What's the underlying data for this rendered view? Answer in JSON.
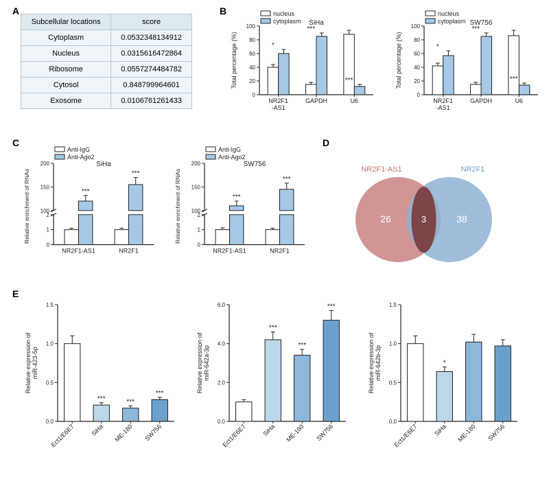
{
  "labels": {
    "A": "A",
    "B": "B",
    "C": "C",
    "D": "D",
    "E": "E"
  },
  "panelA": {
    "columns": [
      "Subcellular locations",
      "score"
    ],
    "rows": [
      [
        "Cytoplasm",
        "0.0532348134912"
      ],
      [
        "Nucleus",
        "0.0315616472864"
      ],
      [
        "Ribosome",
        "0.0557274484782"
      ],
      [
        "Cytosol",
        "0.848799964601"
      ],
      [
        "Exosome",
        "0.0106761261433"
      ]
    ],
    "header_bg": "#dfe9f0",
    "cell_bg": "#eef4f8",
    "border": "#b8c9d4",
    "fontsize": 11
  },
  "panelB": {
    "legend": [
      "nucleus",
      "cytoplasm"
    ],
    "legend_colors": [
      "#ffffff",
      "#a5c9e6"
    ],
    "charts": [
      {
        "title": "SiHa",
        "ylabel": "Total percentage (%)",
        "ylim": [
          0,
          100
        ],
        "ytick_step": 20,
        "categories": [
          "NR2F1\n-AS1",
          "GAPDH",
          "U6"
        ],
        "series": [
          {
            "name": "nucleus",
            "values": [
              40,
              15,
              88
            ],
            "err": [
              4,
              3,
              6
            ],
            "color": "#ffffff"
          },
          {
            "name": "cytoplasm",
            "values": [
              60,
              85,
              12
            ],
            "err": [
              6,
              5,
              3
            ],
            "color": "#a5c9e6"
          }
        ],
        "sig": [
          "*",
          "***",
          "***"
        ]
      },
      {
        "title": "SW756",
        "ylabel": "Total percentage (%)",
        "ylim": [
          0,
          100
        ],
        "ytick_step": 20,
        "categories": [
          "NR2F1\n-AS1",
          "GAPDH",
          "U6"
        ],
        "series": [
          {
            "name": "nucleus",
            "values": [
              42,
              15,
              86
            ],
            "err": [
              4,
              3,
              8
            ],
            "color": "#ffffff"
          },
          {
            "name": "cytoplasm",
            "values": [
              57,
              85,
              14
            ],
            "err": [
              7,
              5,
              3
            ],
            "color": "#a5c9e6"
          }
        ],
        "sig": [
          "*",
          "***",
          "***"
        ]
      }
    ]
  },
  "panelC": {
    "legend": [
      "Anti-IgG",
      "Anti-Ago2"
    ],
    "legend_colors": [
      "#ffffff",
      "#a5c9e6"
    ],
    "charts": [
      {
        "title": "SiHa",
        "ylabel": "Relative enrichment of RNAs",
        "break_low": [
          0,
          2
        ],
        "break_high": [
          100,
          200
        ],
        "categories": [
          "NR2F1-AS1",
          "NR2F1"
        ],
        "series": [
          {
            "name": "Anti-IgG",
            "values": [
              1,
              1
            ],
            "err": [
              0.1,
              0.1
            ],
            "color": "#ffffff"
          },
          {
            "name": "Anti-Ago2",
            "values": [
              120,
              155
            ],
            "err": [
              12,
              15
            ],
            "color": "#a5c9e6"
          }
        ],
        "sig": [
          "***",
          "***"
        ]
      },
      {
        "title": "SW756",
        "ylabel": "Relative enrichment of RNAs",
        "break_low": [
          0,
          2
        ],
        "break_high": [
          100,
          200
        ],
        "categories": [
          "NR2F1-AS1",
          "NR2F1"
        ],
        "series": [
          {
            "name": "Anti-IgG",
            "values": [
              1,
              1
            ],
            "err": [
              0.12,
              0.1
            ],
            "color": "#ffffff"
          },
          {
            "name": "Anti-Ago2",
            "values": [
              110,
              145
            ],
            "err": [
              10,
              13
            ],
            "color": "#a5c9e6"
          }
        ],
        "sig": [
          "***",
          "***"
        ]
      }
    ]
  },
  "panelD": {
    "left_label": "NR2F1-AS1",
    "right_label": "NR2F1",
    "left_count": "26",
    "overlap": "3",
    "right_count": "38",
    "left_color": "#c98282",
    "right_color": "#8fb3d4",
    "overlap_color": "#7a3a3a",
    "left_label_color": "#c77272",
    "right_label_color": "#6fa0cc"
  },
  "panelE": {
    "charts": [
      {
        "ylabel": "Relative expression of\nmiR-423-5p",
        "ylim": [
          0,
          1.5
        ],
        "ytick_step": 0.5,
        "categories": [
          "Ect1/E6E7",
          "SiHa",
          "ME-180",
          "SW756"
        ],
        "values": [
          1.0,
          0.21,
          0.17,
          0.28
        ],
        "err": [
          0.1,
          0.03,
          0.03,
          0.03
        ],
        "colors": [
          "#ffffff",
          "#bcd7ea",
          "#8cb8da",
          "#6ca0cc"
        ],
        "sig": [
          "",
          "***",
          "***",
          "***"
        ]
      },
      {
        "ylabel": "Relative expression of\nmiR-642a-3p",
        "ylim": [
          0,
          6
        ],
        "ytick_step": 2,
        "categories": [
          "Ect1/E6E7",
          "SiHa",
          "ME-180",
          "SW756"
        ],
        "values": [
          1.0,
          4.2,
          3.4,
          5.2
        ],
        "err": [
          0.12,
          0.4,
          0.3,
          0.5
        ],
        "colors": [
          "#ffffff",
          "#bcd7ea",
          "#8cb8da",
          "#6ca0cc"
        ],
        "sig": [
          "",
          "***",
          "***",
          "***"
        ]
      },
      {
        "ylabel": "Relative expression of\nmiR-642b-3p",
        "ylim": [
          0,
          1.5
        ],
        "ytick_step": 0.5,
        "categories": [
          "Ect1/E6E7",
          "SiHa",
          "ME-180",
          "SW756"
        ],
        "values": [
          1.0,
          0.64,
          1.02,
          0.97
        ],
        "err": [
          0.1,
          0.06,
          0.1,
          0.08
        ],
        "colors": [
          "#ffffff",
          "#bcd7ea",
          "#8cb8da",
          "#6ca0cc"
        ],
        "sig": [
          "",
          "*",
          "",
          ""
        ]
      }
    ]
  },
  "style": {
    "axis_color": "#222",
    "bar_stroke": "#222",
    "tick_fontsize": 9,
    "label_fontsize": 10
  }
}
